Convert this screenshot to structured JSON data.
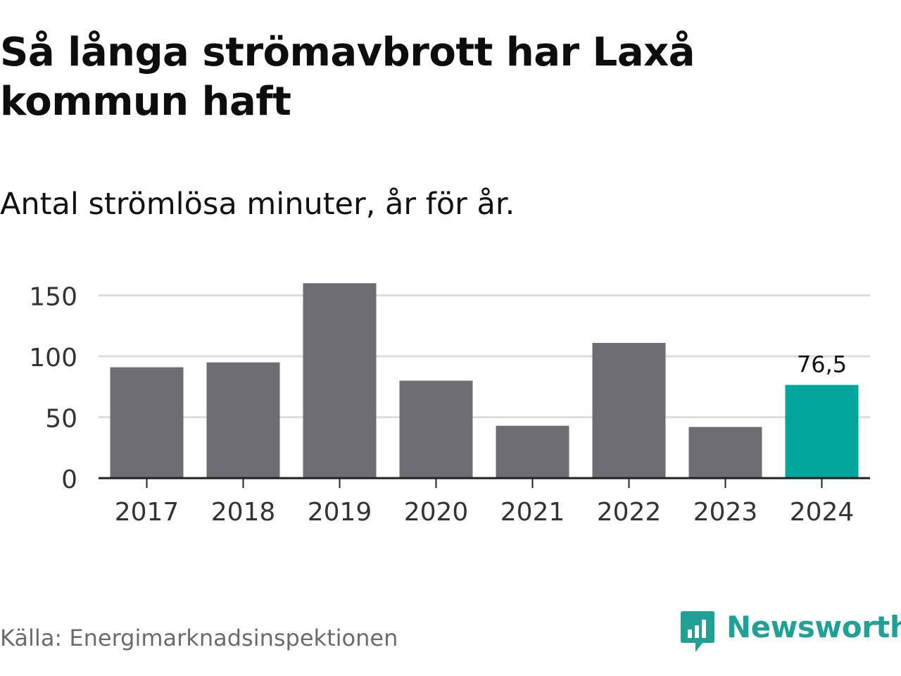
{
  "title": "Så långa strömavbrott har Laxå kommun haft",
  "subtitle": "Antal strömlösa minuter, år för år.",
  "source": "Källa: Energimarknadsinspektionen",
  "brand": {
    "name": "Newsworthy",
    "icon": "newsworthy-logo-icon",
    "color": "#21a095"
  },
  "colors": {
    "bar": "#6e6d73",
    "highlight": "#00a69c",
    "grid": "#dddddd",
    "axis": "#222222",
    "tick_label": "#333333"
  },
  "chart_data": {
    "type": "bar",
    "title": "Så långa strömavbrott har Laxå kommun haft",
    "subtitle": "Antal strömlösa minuter, år för år.",
    "xlabel": "",
    "ylabel": "",
    "categories": [
      "2017",
      "2018",
      "2019",
      "2020",
      "2021",
      "2022",
      "2023",
      "2024"
    ],
    "values": [
      91,
      95,
      160,
      80,
      43,
      111,
      42,
      76.5
    ],
    "highlight_index": 7,
    "data_labels": [
      {
        "index": 7,
        "text": "76,5"
      }
    ],
    "ylim": [
      0,
      160
    ],
    "yticks": [
      0,
      50,
      100,
      150
    ],
    "grid": true,
    "legend": "none"
  }
}
